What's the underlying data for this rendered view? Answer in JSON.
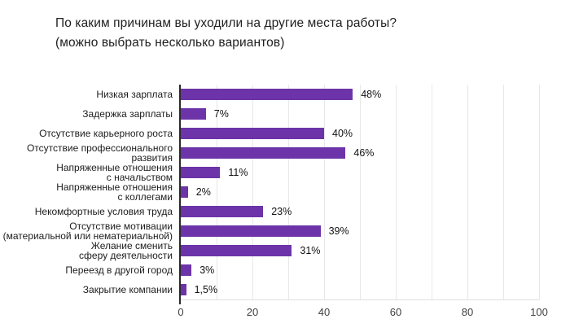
{
  "title": {
    "line1": "По каким причинам вы уходили на другие места работы?",
    "line2": "(можно выбрать несколько вариантов)"
  },
  "colors": {
    "bar": "#6c34a8",
    "axis_line": "#2b2b2b",
    "gridline": "#e8e8e8",
    "title_text": "#212121",
    "category_text": "#1c1c1c",
    "value_text": "#111111",
    "tick_text": "#404040",
    "background": "#ffffff"
  },
  "chart_data": {
    "type": "bar",
    "orientation": "horizontal",
    "title": "По каким причинам вы уходили на другие места работы? (можно выбрать несколько вариантов)",
    "categories": [
      "Низкая зарплата",
      "Задержка зарплаты",
      "Отсутствие карьерного роста",
      "Отсутствие профессионального развития",
      "Напряженные отношения с начальством",
      "Напряженные отношения с коллегами",
      "Некомфортные условия труда",
      "Отсутствие мотивации (материальной или нематериальной)",
      "Желание сменить сферу деятельности",
      "Переезд в другой город",
      "Закрытие компании"
    ],
    "category_lines": [
      [
        "Низкая зарплата"
      ],
      [
        "Задержка зарплаты"
      ],
      [
        "Отсутствие карьерного роста"
      ],
      [
        "Отсутствие профессионального",
        "развития"
      ],
      [
        "Напряженные отношения",
        "с начальством"
      ],
      [
        "Напряженные отношения",
        "с коллегами"
      ],
      [
        "Некомфортные условия труда"
      ],
      [
        "Отсутствие мотивации",
        "(материальной или нематериальной)"
      ],
      [
        "Желание сменить",
        "сферу деятельности"
      ],
      [
        "Переезд в другой город"
      ],
      [
        "Закрытие компании"
      ]
    ],
    "values": [
      48,
      7,
      40,
      46,
      11,
      2,
      23,
      39,
      31,
      3,
      1.5
    ],
    "value_labels": [
      "48%",
      "7%",
      "40%",
      "46%",
      "11%",
      "2%",
      "23%",
      "39%",
      "31%",
      "3%",
      "1,5%"
    ],
    "xlabel": "",
    "ylabel": "",
    "xlim": [
      0,
      100
    ],
    "x_ticks": [
      "0",
      "20",
      "40",
      "60",
      "80",
      "100"
    ],
    "gridlines": {
      "vertical_every": 10,
      "visible": true
    },
    "legend": "none"
  }
}
